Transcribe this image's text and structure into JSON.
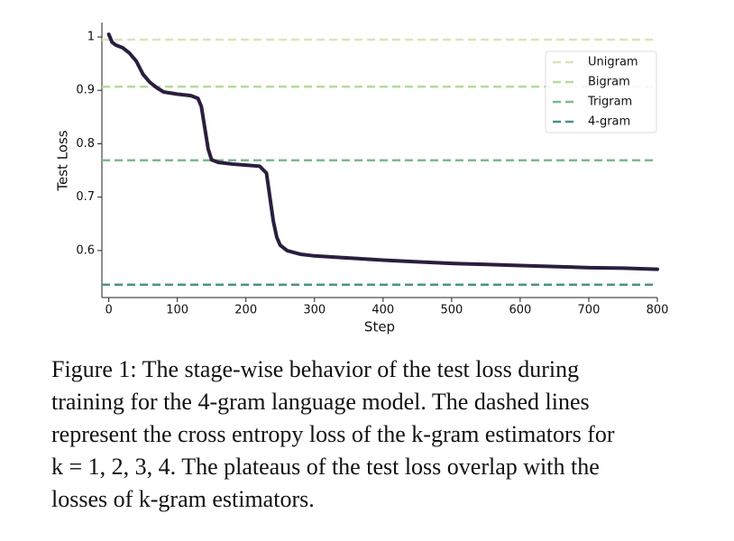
{
  "chart_data": {
    "type": "line",
    "x_label": "Step",
    "y_label": "Test Loss",
    "xlim": [
      -10,
      800
    ],
    "xticks": [
      0,
      100,
      200,
      300,
      400,
      500,
      600,
      700,
      800
    ],
    "ylim": [
      0.512,
      1.027
    ],
    "yticks": [
      0.6,
      0.7,
      0.8,
      0.9,
      1.0
    ],
    "legend": "upper right",
    "x": [
      0,
      5,
      10,
      20,
      30,
      40,
      50,
      60,
      70,
      80,
      100,
      120,
      130,
      135,
      140,
      145,
      150,
      160,
      180,
      200,
      220,
      230,
      235,
      240,
      245,
      250,
      260,
      280,
      300,
      350,
      400,
      450,
      500,
      550,
      600,
      650,
      700,
      750,
      800
    ],
    "series": [
      {
        "color": "#2b1e3e",
        "values": [
          1.005,
          0.99,
          0.985,
          0.98,
          0.97,
          0.955,
          0.93,
          0.915,
          0.905,
          0.897,
          0.893,
          0.89,
          0.885,
          0.87,
          0.83,
          0.79,
          0.77,
          0.765,
          0.762,
          0.76,
          0.758,
          0.745,
          0.7,
          0.655,
          0.625,
          0.61,
          0.6,
          0.593,
          0.59,
          0.586,
          0.582,
          0.579,
          0.576,
          0.574,
          0.572,
          0.57,
          0.568,
          0.567,
          0.565
        ]
      }
    ],
    "reference_lines": [
      {
        "name": "Unigram",
        "color": "#dfe2b8",
        "value": 0.995
      },
      {
        "name": "Bigram",
        "color": "#b4da9c",
        "value": 0.907
      },
      {
        "name": "Trigram",
        "color": "#7cb98d",
        "value": 0.769
      },
      {
        "name": "4-gram",
        "color": "#4c918c",
        "value": 0.536
      }
    ]
  },
  "caption": {
    "lines": [
      "Figure 1: The stage-wise behavior of the test loss during",
      "training for the 4-gram language model. The dashed lines",
      "represent the cross entropy loss of the k-gram estimators for",
      "k = 1, 2, 3, 4. The plateaus of the test loss overlap with the",
      "losses of k-gram estimators."
    ]
  }
}
